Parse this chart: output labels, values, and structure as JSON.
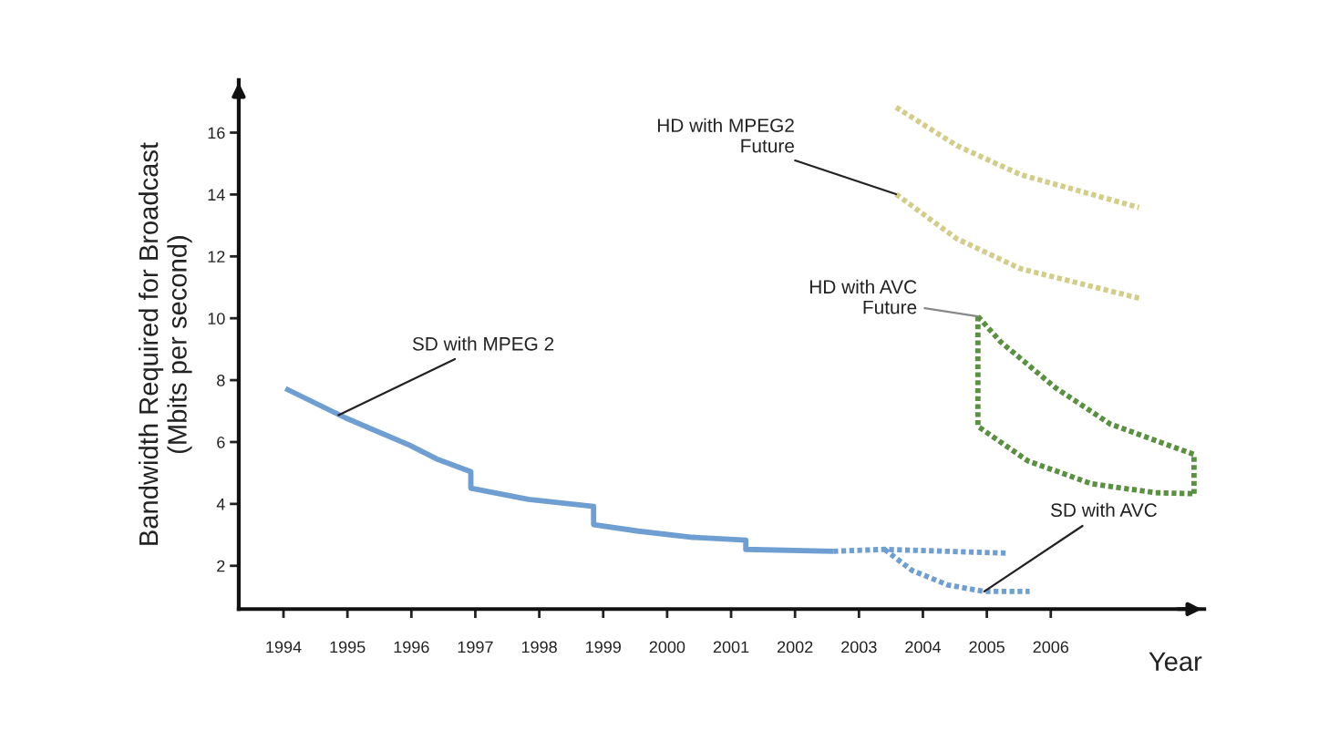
{
  "chart_data": {
    "type": "line",
    "xlabel": "Year",
    "ylabel": "Bandwidth Required for Broadcast\n(Mbits per second)",
    "xlim": [
      1993.3,
      2008.4
    ],
    "ylim": [
      0.6,
      17.7
    ],
    "xticks": [
      1994,
      1995,
      1996,
      1997,
      1998,
      1999,
      2000,
      2001,
      2002,
      2003,
      2004,
      2005,
      2006
    ],
    "yticks": [
      2,
      4,
      6,
      8,
      10,
      12,
      14,
      16
    ],
    "grid": false,
    "legend": false,
    "series": [
      {
        "color": "#6f9fd2",
        "line_style": "solid",
        "x": [
          1994.03,
          1994.97,
          1995.97,
          1996.4,
          1996.93,
          1996.93,
          1997.83,
          1998.85,
          1998.85,
          1999.55,
          2000.4,
          2001.23,
          2001.23,
          2002.6
        ],
        "values": [
          7.73,
          6.78,
          5.9,
          5.45,
          5.04,
          4.51,
          4.15,
          3.92,
          3.33,
          3.12,
          2.92,
          2.83,
          2.53,
          2.47
        ]
      },
      {
        "color": "#6f9fd2",
        "line_style": "dotted",
        "x": [
          2002.6,
          2003.4,
          2005.3
        ],
        "values": [
          2.47,
          2.53,
          2.41
        ]
      },
      {
        "color": "#6f9fd2",
        "line_style": "dotted",
        "x": [
          2003.4,
          2003.83,
          2004.39,
          2004.96,
          2005.67
        ],
        "values": [
          2.53,
          1.85,
          1.38,
          1.17,
          1.17
        ]
      },
      {
        "color": "#d4cd8a",
        "line_style": "dotted",
        "x": [
          2003.58,
          2004.53,
          2005.53,
          2007.38
        ],
        "values": [
          16.82,
          15.58,
          14.64,
          13.58
        ]
      },
      {
        "color": "#d4cd8a",
        "line_style": "dotted",
        "x": [
          2003.58,
          2004.53,
          2005.53,
          2007.38
        ],
        "values": [
          14.01,
          12.57,
          11.6,
          10.65
        ]
      },
      {
        "color": "#5a9140",
        "line_style": "dotted",
        "x": [
          2004.86,
          2005.22,
          2006.07,
          2006.93,
          2008.24,
          2008.24
        ],
        "values": [
          10.06,
          9.23,
          7.76,
          6.58,
          5.6,
          4.33
        ]
      },
      {
        "color": "#5a9140",
        "line_style": "dotted",
        "x": [
          2004.86,
          2004.86,
          2005.64,
          2006.64,
          2007.64,
          2008.24
        ],
        "values": [
          10.06,
          6.51,
          5.39,
          4.65,
          4.36,
          4.33
        ]
      }
    ],
    "annotations": [
      {
        "text": "SD with MPEG 2",
        "x": 1994.86,
        "y": 6.87
      },
      {
        "text": "HD with MPEG2\nFuture",
        "x": 2003.58,
        "y": 14.01
      },
      {
        "text": "HD with AVC\nFuture",
        "x": 2004.86,
        "y": 10.06
      },
      {
        "text": "SD with AVC",
        "x": 2004.96,
        "y": 1.17
      }
    ]
  }
}
